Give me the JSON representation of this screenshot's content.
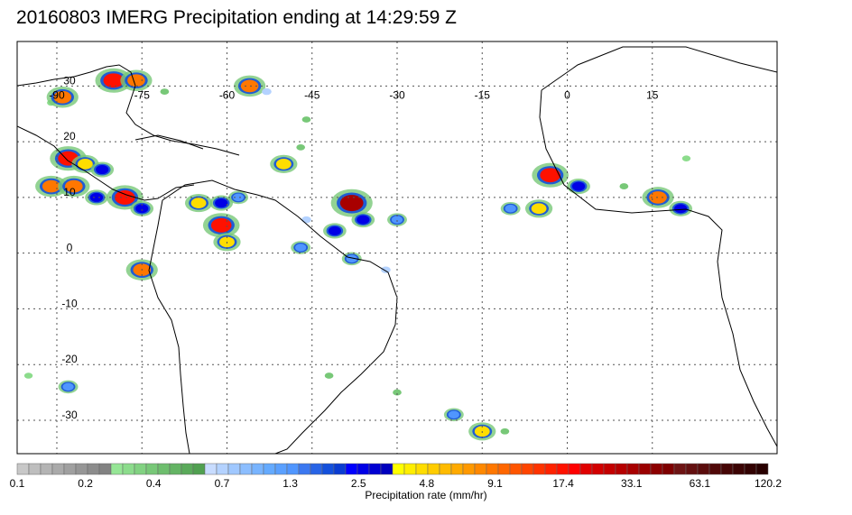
{
  "title": "20160803 IMERG Precipitation ending at 14:29:59 Z",
  "map": {
    "lon_range": [
      -97,
      37
    ],
    "lat_range": [
      -36,
      38
    ],
    "lon_ticks": [
      {
        "value": -90,
        "label": "-90"
      },
      {
        "value": -75,
        "label": "-75"
      },
      {
        "value": -60,
        "label": "-60"
      },
      {
        "value": -45,
        "label": "-45"
      },
      {
        "value": -30,
        "label": "-30"
      },
      {
        "value": -15,
        "label": "-15"
      },
      {
        "value": 0,
        "label": "0"
      },
      {
        "value": 15,
        "label": "15"
      }
    ],
    "lat_ticks": [
      {
        "value": 30,
        "label": "30"
      },
      {
        "value": 20,
        "label": "20"
      },
      {
        "value": 10,
        "label": "10"
      },
      {
        "value": 0,
        "label": "0"
      },
      {
        "value": -10,
        "label": "-10"
      },
      {
        "value": -20,
        "label": "-20"
      },
      {
        "value": -30,
        "label": "-30"
      }
    ],
    "gridlines": true,
    "precip_cells": [
      {
        "lon": -91,
        "lat": 27,
        "rate": 0.3
      },
      {
        "lon": -89,
        "lat": 28,
        "rate": 9.1
      },
      {
        "lon": -80,
        "lat": 31,
        "rate": 17.4
      },
      {
        "lon": -76,
        "lat": 31,
        "rate": 9.1
      },
      {
        "lon": -71,
        "lat": 29,
        "rate": 0.4
      },
      {
        "lon": -56,
        "lat": 30,
        "rate": 9.1
      },
      {
        "lon": -53,
        "lat": 29,
        "rate": 0.7
      },
      {
        "lon": -46,
        "lat": 24,
        "rate": 0.4
      },
      {
        "lon": -88,
        "lat": 17,
        "rate": 17.4
      },
      {
        "lon": -85,
        "lat": 16,
        "rate": 4.8
      },
      {
        "lon": -82,
        "lat": 15,
        "rate": 2.5
      },
      {
        "lon": -91,
        "lat": 12,
        "rate": 9.1
      },
      {
        "lon": -87,
        "lat": 12,
        "rate": 9.1
      },
      {
        "lon": -83,
        "lat": 10,
        "rate": 2.5
      },
      {
        "lon": -78,
        "lat": 10,
        "rate": 17.4
      },
      {
        "lon": -75,
        "lat": 8,
        "rate": 2.5
      },
      {
        "lon": -65,
        "lat": 9,
        "rate": 4.8
      },
      {
        "lon": -61,
        "lat": 9,
        "rate": 2.5
      },
      {
        "lon": -58,
        "lat": 10,
        "rate": 1.3
      },
      {
        "lon": -61,
        "lat": 5,
        "rate": 17.4
      },
      {
        "lon": -60,
        "lat": 2,
        "rate": 4.8
      },
      {
        "lon": -75,
        "lat": -3,
        "rate": 9.1
      },
      {
        "lon": -50,
        "lat": 16,
        "rate": 4.8
      },
      {
        "lon": -47,
        "lat": 19,
        "rate": 0.4
      },
      {
        "lon": -38,
        "lat": 9,
        "rate": 33.1
      },
      {
        "lon": -36,
        "lat": 6,
        "rate": 2.5
      },
      {
        "lon": -41,
        "lat": 4,
        "rate": 2.5
      },
      {
        "lon": -30,
        "lat": 6,
        "rate": 1.3
      },
      {
        "lon": -46,
        "lat": 6,
        "rate": 0.7
      },
      {
        "lon": -47,
        "lat": 1,
        "rate": 1.3
      },
      {
        "lon": -38,
        "lat": -1,
        "rate": 1.3
      },
      {
        "lon": -32,
        "lat": -3,
        "rate": 0.7
      },
      {
        "lon": -10,
        "lat": 8,
        "rate": 1.3
      },
      {
        "lon": -5,
        "lat": 8,
        "rate": 4.8
      },
      {
        "lon": -3,
        "lat": 14,
        "rate": 17.4
      },
      {
        "lon": 2,
        "lat": 12,
        "rate": 2.5
      },
      {
        "lon": 10,
        "lat": 12,
        "rate": 0.4
      },
      {
        "lon": 16,
        "lat": 10,
        "rate": 9.1
      },
      {
        "lon": 20,
        "lat": 8,
        "rate": 2.5
      },
      {
        "lon": 21,
        "lat": 17,
        "rate": 0.3
      },
      {
        "lon": -88,
        "lat": -24,
        "rate": 1.3
      },
      {
        "lon": -95,
        "lat": -22,
        "rate": 0.3
      },
      {
        "lon": -42,
        "lat": -22,
        "rate": 0.4
      },
      {
        "lon": -30,
        "lat": -25,
        "rate": 0.4
      },
      {
        "lon": -20,
        "lat": -29,
        "rate": 1.3
      },
      {
        "lon": -15,
        "lat": -32,
        "rate": 4.8
      },
      {
        "lon": -11,
        "lat": -32,
        "rate": 0.4
      }
    ]
  },
  "colorbar": {
    "colors": [
      "#c8c8c8",
      "#bebebe",
      "#b4b4b4",
      "#aaaaaa",
      "#a0a0a0",
      "#969696",
      "#8c8c8c",
      "#828282",
      "#96e696",
      "#8cdc8c",
      "#82d282",
      "#78c878",
      "#6ebe6e",
      "#64b464",
      "#5aaa5a",
      "#50a050",
      "#c8dcff",
      "#b4d2ff",
      "#a0c8ff",
      "#8cbeff",
      "#78b4ff",
      "#64aaff",
      "#5aa0ff",
      "#5096ff",
      "#3c78f0",
      "#2864e6",
      "#1450dc",
      "#0a3cd2",
      "#0000ff",
      "#0000e6",
      "#0000d2",
      "#0000be",
      "#ffff00",
      "#ffee00",
      "#ffdd00",
      "#ffcc00",
      "#ffbb00",
      "#ffaa00",
      "#ff9900",
      "#ff8800",
      "#ff7700",
      "#ff6600",
      "#ff5500",
      "#ff4400",
      "#ff3300",
      "#ff2200",
      "#ff1100",
      "#ff0000",
      "#e00000",
      "#d20000",
      "#c40000",
      "#b60000",
      "#a80000",
      "#9a0000",
      "#8c0000",
      "#7e0000",
      "#6e1414",
      "#641010",
      "#5a0c0c",
      "#500808",
      "#460606",
      "#3c0404",
      "#320202",
      "#280000"
    ],
    "tick_labels": [
      "0.1",
      "0.2",
      "0.4",
      "0.7",
      "1.3",
      "2.5",
      "4.8",
      "9.1",
      "17.4",
      "33.1",
      "63.1",
      "120.2"
    ],
    "label": "Precipitation rate (mm/hr)"
  }
}
